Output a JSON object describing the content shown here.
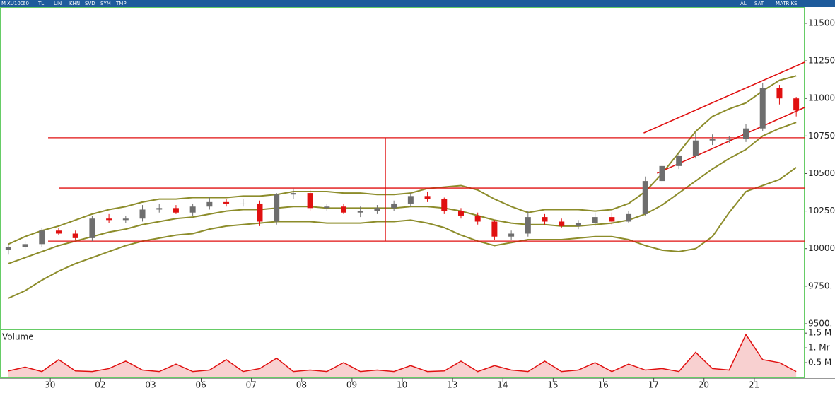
{
  "toolbar": {
    "left": [
      "M",
      "XU100",
      "60",
      "TL",
      "LIN",
      "KHN",
      "SVD",
      "SYM",
      "TMP"
    ],
    "right": [
      "AL",
      "SAT",
      "MATRIKS"
    ]
  },
  "chart_data": {
    "type": "candlestick",
    "volume_label": "Volume",
    "xlim": [
      -0.5,
      47.5
    ],
    "xticks": [
      {
        "value": 2.5,
        "label": "30"
      },
      {
        "value": 5.5,
        "label": "02"
      },
      {
        "value": 8.5,
        "label": "03"
      },
      {
        "value": 11.5,
        "label": "06"
      },
      {
        "value": 14.5,
        "label": "07"
      },
      {
        "value": 17.5,
        "label": "08"
      },
      {
        "value": 20.5,
        "label": "09"
      },
      {
        "value": 23.5,
        "label": "10"
      },
      {
        "value": 26.5,
        "label": "13"
      },
      {
        "value": 29.5,
        "label": "14"
      },
      {
        "value": 32.5,
        "label": "15"
      },
      {
        "value": 35.5,
        "label": "16"
      },
      {
        "value": 38.5,
        "label": "17"
      },
      {
        "value": 41.5,
        "label": "20"
      },
      {
        "value": 44.5,
        "label": "21"
      }
    ],
    "ylim": [
      9467,
      11608
    ],
    "yticks": [
      {
        "value": 9500,
        "label": "9500."
      },
      {
        "value": 9750,
        "label": "9750."
      },
      10000,
      10250,
      10500,
      10750,
      11000,
      11250,
      11500
    ],
    "up_color": "#6e6e6e",
    "down_color": "#e01010",
    "open": [
      9990,
      10010,
      10030,
      10120,
      10100,
      10070,
      10200,
      10190,
      10200,
      10260,
      10270,
      10240,
      10280,
      10310,
      10300,
      10300,
      10180,
      10360,
      10370,
      10270,
      10280,
      10240,
      10250,
      10270,
      10300,
      10350,
      10330,
      10250,
      10220,
      10180,
      10080,
      10100,
      10210,
      10180,
      10150,
      10170,
      10210,
      10180,
      10230,
      10450,
      10550,
      10620,
      10720,
      10730,
      10730,
      10800,
      11070,
      11000
    ],
    "high": [
      10030,
      10050,
      10140,
      10140,
      10120,
      10220,
      10230,
      10220,
      10290,
      10300,
      10290,
      10300,
      10340,
      10330,
      10330,
      10320,
      10370,
      10400,
      10390,
      10300,
      10300,
      10280,
      10290,
      10320,
      10370,
      10380,
      10340,
      10270,
      10240,
      10190,
      10120,
      10250,
      10230,
      10200,
      10190,
      10240,
      10240,
      10250,
      10480,
      10560,
      10640,
      10770,
      10760,
      10750,
      10830,
      11100,
      11090,
      11010
    ],
    "low": [
      9960,
      9990,
      10010,
      10090,
      10060,
      10050,
      10170,
      10170,
      10180,
      10240,
      10230,
      10220,
      10260,
      10280,
      10280,
      10150,
      10160,
      10330,
      10250,
      10250,
      10230,
      10210,
      10230,
      10250,
      10280,
      10310,
      10230,
      10200,
      10160,
      10060,
      10060,
      10080,
      10160,
      10140,
      10130,
      10150,
      10160,
      10170,
      10220,
      10430,
      10530,
      10600,
      10690,
      10700,
      10710,
      10780,
      10960,
      10880
    ],
    "close": [
      10010,
      10030,
      10120,
      10100,
      10070,
      10200,
      10190,
      10200,
      10260,
      10270,
      10240,
      10280,
      10310,
      10300,
      10300,
      10180,
      10360,
      10370,
      10270,
      10280,
      10240,
      10250,
      10270,
      10300,
      10350,
      10330,
      10250,
      10220,
      10180,
      10080,
      10100,
      10210,
      10180,
      10150,
      10170,
      10210,
      10180,
      10230,
      10450,
      10550,
      10620,
      10720,
      10730,
      10730,
      10800,
      11070,
      11000,
      10920
    ],
    "band_color": "#8c8c2a",
    "bands": [
      {
        "values": [
          10030,
          10080,
          10120,
          10150,
          10190,
          10230,
          10260,
          10280,
          10310,
          10330,
          10330,
          10340,
          10340,
          10340,
          10350,
          10350,
          10360,
          10380,
          10380,
          10380,
          10370,
          10370,
          10360,
          10360,
          10370,
          10400,
          10410,
          10420,
          10390,
          10330,
          10280,
          10240,
          10260,
          10260,
          10260,
          10250,
          10260,
          10300,
          10380,
          10500,
          10640,
          10780,
          10880,
          10930,
          10970,
          11050,
          11120,
          11150
        ]
      },
      {
        "values": [
          9900,
          9940,
          9980,
          10020,
          10050,
          10080,
          10110,
          10130,
          10160,
          10180,
          10200,
          10210,
          10230,
          10250,
          10260,
          10260,
          10270,
          10280,
          10280,
          10270,
          10270,
          10270,
          10270,
          10270,
          10280,
          10280,
          10270,
          10250,
          10220,
          10190,
          10170,
          10160,
          10160,
          10150,
          10150,
          10160,
          10170,
          10190,
          10230,
          10290,
          10370,
          10450,
          10530,
          10600,
          10660,
          10750,
          10800,
          10840
        ]
      },
      {
        "values": [
          9670,
          9720,
          9790,
          9850,
          9900,
          9940,
          9980,
          10020,
          10050,
          10070,
          10090,
          10100,
          10130,
          10150,
          10160,
          10170,
          10180,
          10180,
          10180,
          10170,
          10170,
          10170,
          10180,
          10180,
          10190,
          10170,
          10140,
          10090,
          10050,
          10020,
          10040,
          10060,
          10060,
          10060,
          10070,
          10080,
          10080,
          10060,
          10020,
          9990,
          9980,
          10000,
          10080,
          10240,
          10380,
          10420,
          10460,
          10540
        ]
      }
    ],
    "drawing_color": "#e01010",
    "hlines": [
      {
        "y": 10738,
        "x": [
          2.37,
          47.5
        ]
      },
      {
        "y": 10403,
        "x": [
          3.04,
          47.5
        ]
      },
      {
        "y": 10050,
        "x": [
          2.37,
          47.5
        ]
      }
    ],
    "vlines": [
      {
        "x": 22.49,
        "y": [
          10050,
          10738
        ]
      }
    ],
    "trendlines": [
      {
        "x": [
          37.9,
          47.5
        ],
        "y": [
          10770,
          11241
        ]
      },
      {
        "x": [
          38.7,
          47.5
        ],
        "y": [
          10502,
          10940
        ]
      }
    ],
    "volume": [
      0.22,
      0.35,
      0.2,
      0.6,
      0.22,
      0.2,
      0.3,
      0.55,
      0.25,
      0.2,
      0.45,
      0.2,
      0.25,
      0.6,
      0.2,
      0.3,
      0.65,
      0.2,
      0.25,
      0.2,
      0.5,
      0.2,
      0.25,
      0.2,
      0.4,
      0.2,
      0.22,
      0.55,
      0.2,
      0.4,
      0.25,
      0.2,
      0.55,
      0.2,
      0.25,
      0.5,
      0.2,
      0.45,
      0.25,
      0.3,
      0.2,
      0.85,
      0.3,
      0.25,
      1.45,
      0.6,
      0.5,
      0.2
    ],
    "volume_color": "#e01010",
    "volume_ylim": [
      0,
      1.6
    ],
    "volume_yticks": [
      {
        "value": 0.5,
        "label": "0.5 M"
      },
      {
        "value": 1,
        "label": "1. Mr"
      },
      {
        "value": 1.5,
        "label": "1.5 M"
      }
    ]
  }
}
